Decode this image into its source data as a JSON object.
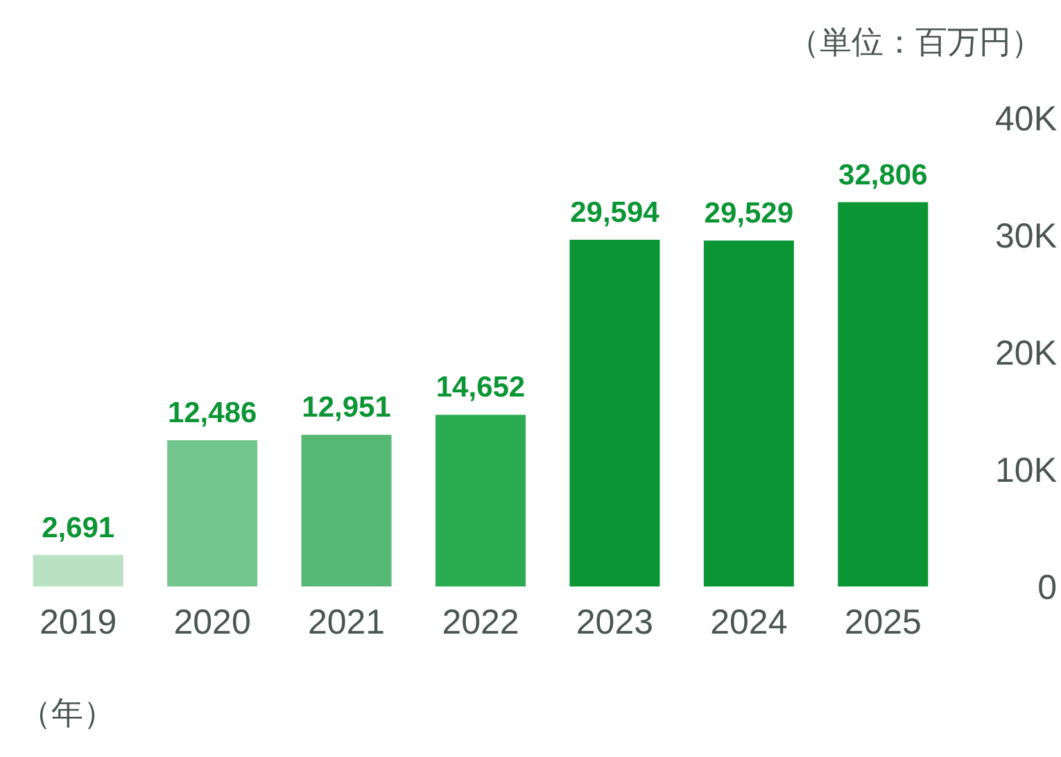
{
  "chart_data": {
    "type": "bar",
    "ylabel": "（単位：百万円）",
    "xlabel": "（年）",
    "categories": [
      "2019",
      "2020",
      "2021",
      "2022",
      "2023",
      "2024",
      "2025"
    ],
    "values": [
      2691,
      12486,
      12951,
      14652,
      29594,
      29529,
      32806
    ],
    "colors": [
      "#bae1c3",
      "#73c78e",
      "#57b876",
      "#2aab4f",
      "#0b9534",
      "#0b9534",
      "#0b9534"
    ],
    "ylim": [
      0,
      40000
    ],
    "yticks": [
      0,
      {
        "value": 10000,
        "label": "10K"
      },
      {
        "value": 20000,
        "label": "20K"
      },
      {
        "value": 30000,
        "label": "30K"
      },
      {
        "value": 40000,
        "label": "40K"
      }
    ],
    "value_labels": [
      "2,691",
      "12,486",
      "12,951",
      "14,652",
      "29,594",
      "29,529",
      "32,806"
    ]
  }
}
